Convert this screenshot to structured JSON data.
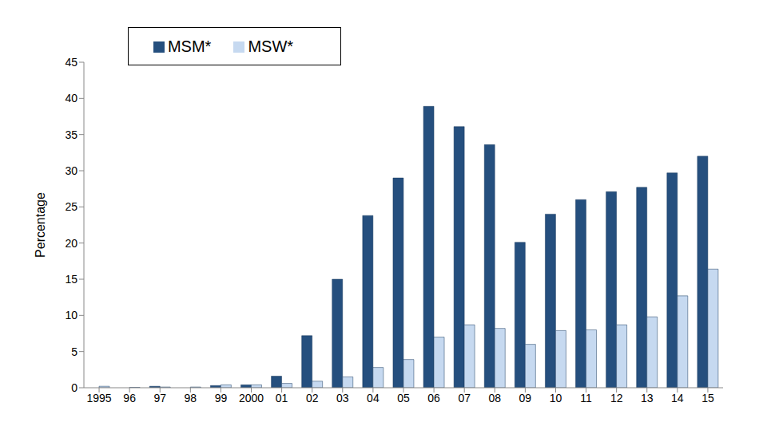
{
  "chart_data": {
    "type": "bar",
    "y_label": "Percentage",
    "categories": [
      "1995",
      "96",
      "97",
      "98",
      "99",
      "2000",
      "01",
      "02",
      "03",
      "04",
      "05",
      "06",
      "07",
      "08",
      "09",
      "10",
      "11",
      "12",
      "13",
      "14",
      "15"
    ],
    "series": [
      {
        "name": "MSM*",
        "color": "#254f7e",
        "values": [
          0,
          0,
          0.2,
          0,
          0.3,
          0.4,
          1.6,
          7.2,
          15.0,
          23.8,
          29.0,
          38.9,
          36.1,
          33.6,
          20.1,
          24.0,
          26.0,
          27.1,
          27.7,
          29.7,
          32.0
        ]
      },
      {
        "name": "MSW*",
        "color": "#c6d9f0",
        "values": [
          0.2,
          0.05,
          0.1,
          0.1,
          0.4,
          0.4,
          0.6,
          0.9,
          1.5,
          2.8,
          3.9,
          7.0,
          8.7,
          8.2,
          6.0,
          7.9,
          8.0,
          8.7,
          9.8,
          12.7,
          16.4
        ]
      }
    ],
    "ylim": [
      0,
      45
    ],
    "yticks": [
      0,
      5,
      10,
      15,
      20,
      25,
      30,
      35,
      40,
      45
    ],
    "grid": false,
    "legend": "upper left"
  }
}
